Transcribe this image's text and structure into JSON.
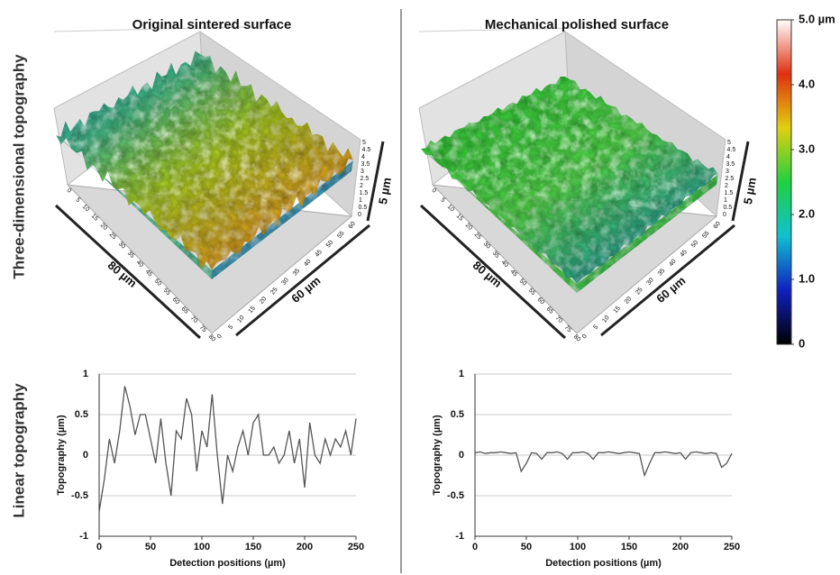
{
  "row_labels": [
    "Three-dimensional topography",
    "Linear topography"
  ],
  "chart_data": [
    {
      "type": "surface",
      "title": "Original sintered surface",
      "x_label": "80 µm",
      "y_label": "60 µm",
      "z_label": "5 µm",
      "xticks": [
        0,
        5,
        10,
        15,
        20,
        25,
        30,
        35,
        40,
        45,
        50,
        55,
        60,
        65,
        70,
        75,
        80
      ],
      "yticks": [
        0,
        5,
        10,
        15,
        20,
        25,
        30,
        35,
        40,
        45,
        50,
        55,
        60
      ],
      "zticks": [
        0,
        0.5,
        1,
        1.5,
        2,
        2.5,
        3,
        3.5,
        4,
        4.5,
        5
      ],
      "colors": [
        "#2a8fb0",
        "#3fb98a",
        "#a8c81e",
        "#d8a020",
        "#c8641c"
      ]
    },
    {
      "type": "surface",
      "title": "Mechanical polished surface",
      "x_label": "80 µm",
      "y_label": "60 µm",
      "z_label": "5 µm",
      "xticks": [
        0,
        5,
        10,
        15,
        20,
        25,
        30,
        35,
        40,
        45,
        50,
        55,
        60,
        65,
        70,
        75,
        80
      ],
      "yticks": [
        0,
        5,
        10,
        15,
        20,
        25,
        30,
        35,
        40,
        45,
        50,
        55,
        60
      ],
      "zticks": [
        0,
        0.5,
        1,
        1.5,
        2,
        2.5,
        3,
        3.5,
        4,
        4.5,
        5
      ],
      "colors": [
        "#2fbf3a",
        "#3ccf3c",
        "#52d64a",
        "#2fa88a",
        "#45d040"
      ]
    },
    {
      "type": "line",
      "x_label": "Detection positions (µm)",
      "y_label": "Topography (µm)",
      "color": "#555555",
      "grid": true,
      "xlim": [
        0,
        250
      ],
      "ylim": [
        -1,
        1
      ],
      "xticks": [
        0,
        50,
        100,
        150,
        200,
        250
      ],
      "yticks": [
        -1,
        -0.5,
        0,
        0.5,
        1
      ],
      "x": [
        0,
        5,
        10,
        15,
        20,
        25,
        30,
        35,
        40,
        45,
        50,
        55,
        60,
        65,
        70,
        75,
        80,
        85,
        90,
        95,
        100,
        105,
        110,
        115,
        120,
        125,
        130,
        135,
        140,
        145,
        150,
        155,
        160,
        165,
        170,
        175,
        180,
        185,
        190,
        195,
        200,
        205,
        210,
        215,
        220,
        225,
        230,
        235,
        240,
        245,
        250
      ],
      "values": [
        -0.7,
        -0.3,
        0.2,
        -0.1,
        0.3,
        0.85,
        0.6,
        0.25,
        0.5,
        0.5,
        0.2,
        -0.1,
        0.45,
        -0.1,
        -0.5,
        0.3,
        0.2,
        0.7,
        0.5,
        -0.2,
        0.3,
        0.1,
        0.75,
        0,
        -0.6,
        0,
        -0.2,
        0.1,
        0.3,
        0,
        0.4,
        0.5,
        0,
        0,
        0.1,
        -0.1,
        0,
        0.3,
        -0.1,
        0.2,
        -0.4,
        0.4,
        0,
        -0.1,
        0.2,
        0,
        0.2,
        0.1,
        0.3,
        0,
        0.45
      ]
    },
    {
      "type": "line",
      "x_label": "Detection positions (µm)",
      "y_label": "Topography (µm)",
      "color": "#555555",
      "grid": true,
      "xlim": [
        0,
        250
      ],
      "ylim": [
        -1,
        1
      ],
      "xticks": [
        0,
        50,
        100,
        150,
        200,
        250
      ],
      "yticks": [
        -1,
        -0.5,
        0,
        0.5,
        1
      ],
      "x": [
        0,
        5,
        10,
        15,
        20,
        25,
        30,
        35,
        40,
        45,
        50,
        55,
        60,
        65,
        70,
        75,
        80,
        85,
        90,
        95,
        100,
        105,
        110,
        115,
        120,
        125,
        130,
        135,
        140,
        145,
        150,
        155,
        160,
        165,
        170,
        175,
        180,
        185,
        190,
        195,
        200,
        205,
        210,
        215,
        220,
        225,
        230,
        235,
        240,
        245,
        250
      ],
      "values": [
        0.03,
        0.04,
        0.02,
        0.03,
        0.03,
        0.04,
        0.03,
        0.02,
        0.03,
        -0.2,
        -0.1,
        0.03,
        0.02,
        -0.05,
        0.03,
        0.03,
        0.04,
        0.02,
        -0.05,
        0.03,
        0.03,
        0.04,
        0.02,
        -0.05,
        0.03,
        0.03,
        0.04,
        0.03,
        0.02,
        0.03,
        0.04,
        0.03,
        0.02,
        -0.25,
        -0.1,
        0.03,
        0.03,
        0.04,
        0.03,
        0.02,
        0.03,
        -0.05,
        0.03,
        0.04,
        0.03,
        0.02,
        0.03,
        0.02,
        -0.15,
        -0.1,
        0.02
      ]
    },
    {
      "type": "colorbar",
      "clim": [
        0,
        5
      ],
      "colors": [
        "#000000",
        "#1020c0",
        "#10c0d0",
        "#20d040",
        "#e0d010",
        "#e03010",
        "#ffffff"
      ],
      "ticks": [
        0,
        {
          "value": 1,
          "label": "1.0"
        },
        {
          "value": 2,
          "label": "2.0"
        },
        {
          "value": 3,
          "label": "3.0"
        },
        {
          "value": 4,
          "label": "4.0"
        },
        {
          "value": 5,
          "label": "5.0 µm"
        }
      ]
    }
  ]
}
